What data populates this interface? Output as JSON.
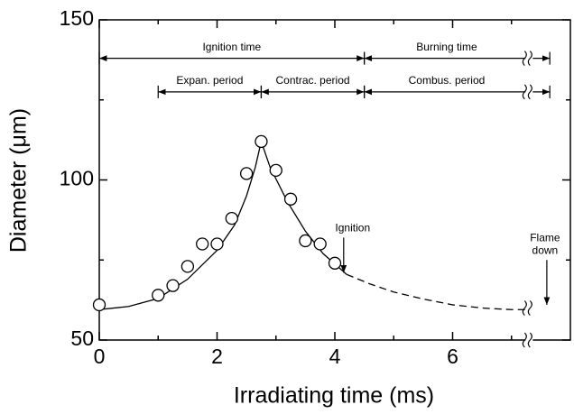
{
  "chart_data": {
    "type": "scatter",
    "xlabel": "Irradiating time (ms)",
    "ylabel": "Diameter (μm)",
    "xlim": [
      0,
      8
    ],
    "ylim": [
      50,
      150
    ],
    "xticks": [
      0,
      2,
      4,
      6
    ],
    "yticks": [
      50,
      100,
      150
    ],
    "xminorticks": [
      1,
      3,
      5,
      7
    ],
    "yminorticks": [
      75,
      125
    ],
    "axis_break": 7.3,
    "points": {
      "x": [
        0,
        1,
        1.25,
        1.5,
        1.75,
        2,
        2.25,
        2.5,
        2.75,
        3,
        3.25,
        3.5,
        3.75,
        4
      ],
      "values": [
        61,
        64,
        67,
        73,
        80,
        80,
        88,
        102,
        112,
        103,
        94,
        81,
        80,
        74
      ]
    },
    "curves": [
      {
        "style": "solid",
        "x": [
          0,
          0.5,
          1,
          1.5,
          2,
          2.3,
          2.5,
          2.65,
          2.75,
          2.9,
          3.2,
          3.5,
          3.8,
          4.2
        ],
        "values": [
          59.5,
          60.5,
          63,
          69,
          78,
          86,
          95,
          104,
          112,
          104,
          93,
          84,
          77,
          70.5
        ]
      },
      {
        "style": "dashed",
        "x": [
          4.2,
          4.6,
          5,
          5.5,
          6,
          6.5,
          7,
          7.3
        ],
        "values": [
          70.5,
          67.5,
          65,
          62.8,
          61,
          60,
          59.5,
          59.5
        ]
      }
    ],
    "spans": [
      {
        "label": "Ignition time",
        "from": 0,
        "to": 4.5,
        "y": 138
      },
      {
        "label": "Burning time",
        "from": 4.5,
        "to": 7.65,
        "y": 138
      },
      {
        "label": "Expan. period",
        "from": 1,
        "to": 2.75,
        "y": 127.5
      },
      {
        "label": "Contrac. period",
        "from": 2.75,
        "to": 4.5,
        "y": 127.5
      },
      {
        "label": "Combus. period",
        "from": 4.5,
        "to": 7.65,
        "y": 127.5
      }
    ],
    "arrows": [
      {
        "label": "Ignition",
        "x": 4.15,
        "from": 82,
        "to": 71
      },
      {
        "label": "Flame down",
        "x": 7.6,
        "from": 75,
        "to": 61
      }
    ]
  }
}
